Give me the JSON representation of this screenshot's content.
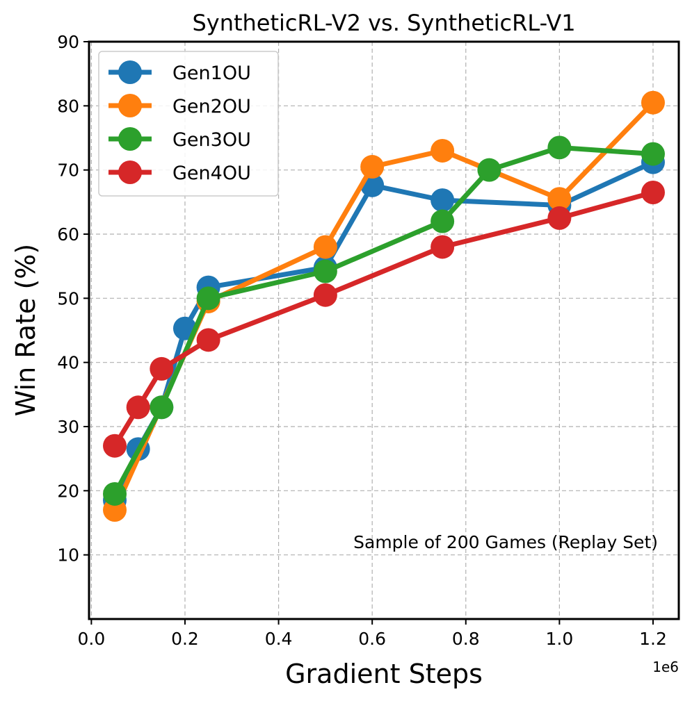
{
  "chart_data": {
    "type": "line",
    "title": "SyntheticRL-V2 vs. SyntheticRL-V1",
    "xlabel": "Gradient Steps",
    "ylabel": "Win Rate (%)",
    "x_offset_label": "1e6",
    "xlim": [
      -0.005,
      1.255
    ],
    "ylim": [
      0,
      90
    ],
    "xticks": [
      0.0,
      0.2,
      0.4,
      0.6,
      0.8,
      1.0,
      1.2
    ],
    "xtick_labels": [
      "0.0",
      "0.2",
      "0.4",
      "0.6",
      "0.8",
      "1.0",
      "1.2"
    ],
    "yticks": [
      10,
      20,
      30,
      40,
      50,
      60,
      70,
      80,
      90
    ],
    "ytick_labels": [
      "10",
      "20",
      "30",
      "40",
      "50",
      "60",
      "70",
      "80",
      "90"
    ],
    "grid": true,
    "legend_position": "top-left",
    "annotation": "Sample of 200 Games (Replay Set)",
    "series": [
      {
        "name": "Gen1OU",
        "color": "#1f77b4",
        "x": [
          0.05,
          0.1,
          0.15,
          0.2,
          0.25,
          0.5,
          0.6,
          0.75,
          1.0,
          1.2
        ],
        "values": [
          18.5,
          26.5,
          33,
          45.3,
          51.7,
          54.8,
          67.6,
          65.3,
          64.5,
          71.2
        ]
      },
      {
        "name": "Gen2OU",
        "color": "#ff7f0e",
        "x": [
          0.05,
          0.25,
          0.5,
          0.6,
          0.75,
          1.0,
          1.2
        ],
        "values": [
          17,
          49.5,
          58,
          70.5,
          73,
          65.5,
          80.5
        ]
      },
      {
        "name": "Gen3OU",
        "color": "#2ca02c",
        "x": [
          0.05,
          0.15,
          0.25,
          0.5,
          0.75,
          0.85,
          1.0,
          1.2
        ],
        "values": [
          19.5,
          33,
          50,
          54.2,
          62,
          70,
          73.5,
          72.5
        ]
      },
      {
        "name": "Gen4OU",
        "color": "#d62728",
        "x": [
          0.05,
          0.1,
          0.15,
          0.25,
          0.5,
          0.75,
          1.0,
          1.2
        ],
        "values": [
          27,
          33,
          39,
          43.5,
          50.5,
          58,
          62.5,
          66.5
        ]
      }
    ]
  }
}
